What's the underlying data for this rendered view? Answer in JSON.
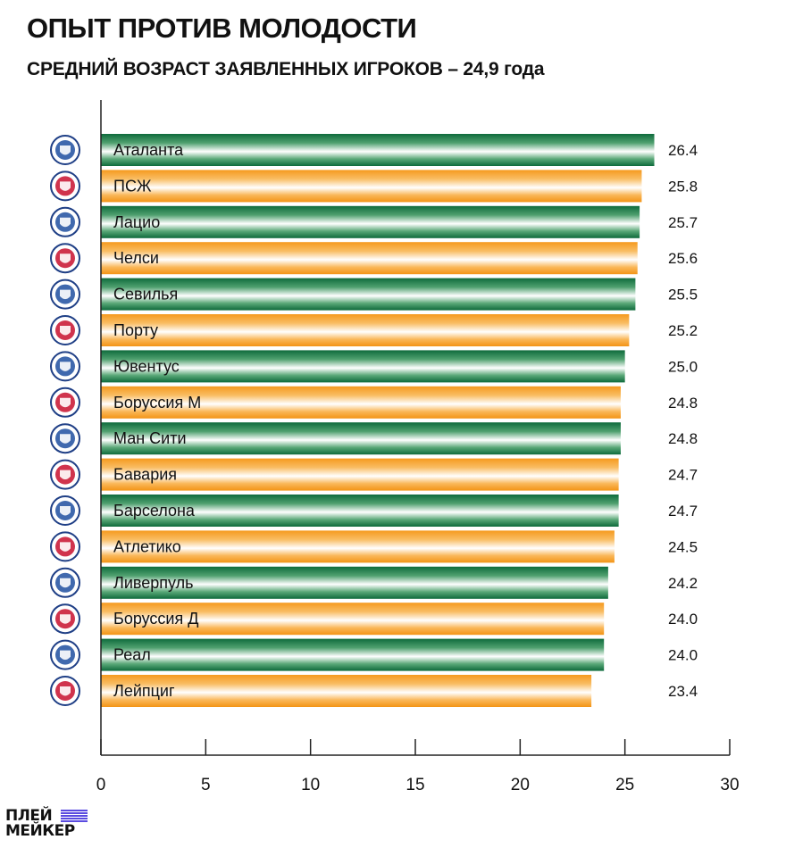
{
  "header": {
    "title": "ОПЫТ ПРОТИВ МОЛОДОСТИ",
    "subtitle": "СРЕДНИЙ ВОЗРАСТ ЗАЯВЛЕННЫХ ИГРОКОВ – 24,9 года"
  },
  "colors": {
    "green": "#1b7d4a",
    "orange": "#f7a12a",
    "axis": "#222222"
  },
  "chart_data": {
    "type": "bar",
    "orientation": "horizontal",
    "title": "ОПЫТ ПРОТИВ МОЛОДОСТИ",
    "subtitle": "СРЕДНИЙ ВОЗРАСТ ЗАЯВЛЕННЫХ ИГРОКОВ – 24,9 года",
    "xlabel": "",
    "ylabel": "",
    "xlim": [
      0,
      30
    ],
    "xticks": [
      0,
      5,
      10,
      15,
      20,
      25,
      30
    ],
    "grid": false,
    "categories": [
      "Аталанта",
      "ПСЖ",
      "Лацио",
      "Челси",
      "Севилья",
      "Порту",
      "Ювентус",
      "Боруссия М",
      "Ман Сити",
      "Бавария",
      "Барселона",
      "Атлетико",
      "Ливерпуль",
      "Боруссия Д",
      "Реал",
      "Лейпциг"
    ],
    "values": [
      26.4,
      25.8,
      25.7,
      25.6,
      25.5,
      25.2,
      25.0,
      24.8,
      24.8,
      24.7,
      24.7,
      24.5,
      24.2,
      24.0,
      24.0,
      23.4
    ],
    "value_labels": [
      "26.4",
      "25.8",
      "25.7",
      "25.6",
      "25.5",
      "25.2",
      "25.0",
      "24.8",
      "24.8",
      "24.7",
      "24.7",
      "24.5",
      "24.2",
      "24.0",
      "24.0",
      "23.4"
    ],
    "bar_colors": [
      "green",
      "orange",
      "green",
      "orange",
      "green",
      "orange",
      "green",
      "orange",
      "green",
      "orange",
      "green",
      "orange",
      "green",
      "orange",
      "green",
      "orange"
    ],
    "team_icons": [
      "atalanta-crest-icon",
      "psg-crest-icon",
      "lazio-crest-icon",
      "chelsea-crest-icon",
      "sevilla-crest-icon",
      "porto-crest-icon",
      "juventus-crest-icon",
      "gladbach-crest-icon",
      "man-city-crest-icon",
      "bayern-crest-icon",
      "barcelona-crest-icon",
      "atletico-crest-icon",
      "liverpool-crest-icon",
      "dortmund-crest-icon",
      "real-madrid-crest-icon",
      "leipzig-crest-icon"
    ]
  },
  "branding": {
    "logo_line1": "ПЛЕЙ",
    "logo_line2": "МЕЙКЕР"
  }
}
